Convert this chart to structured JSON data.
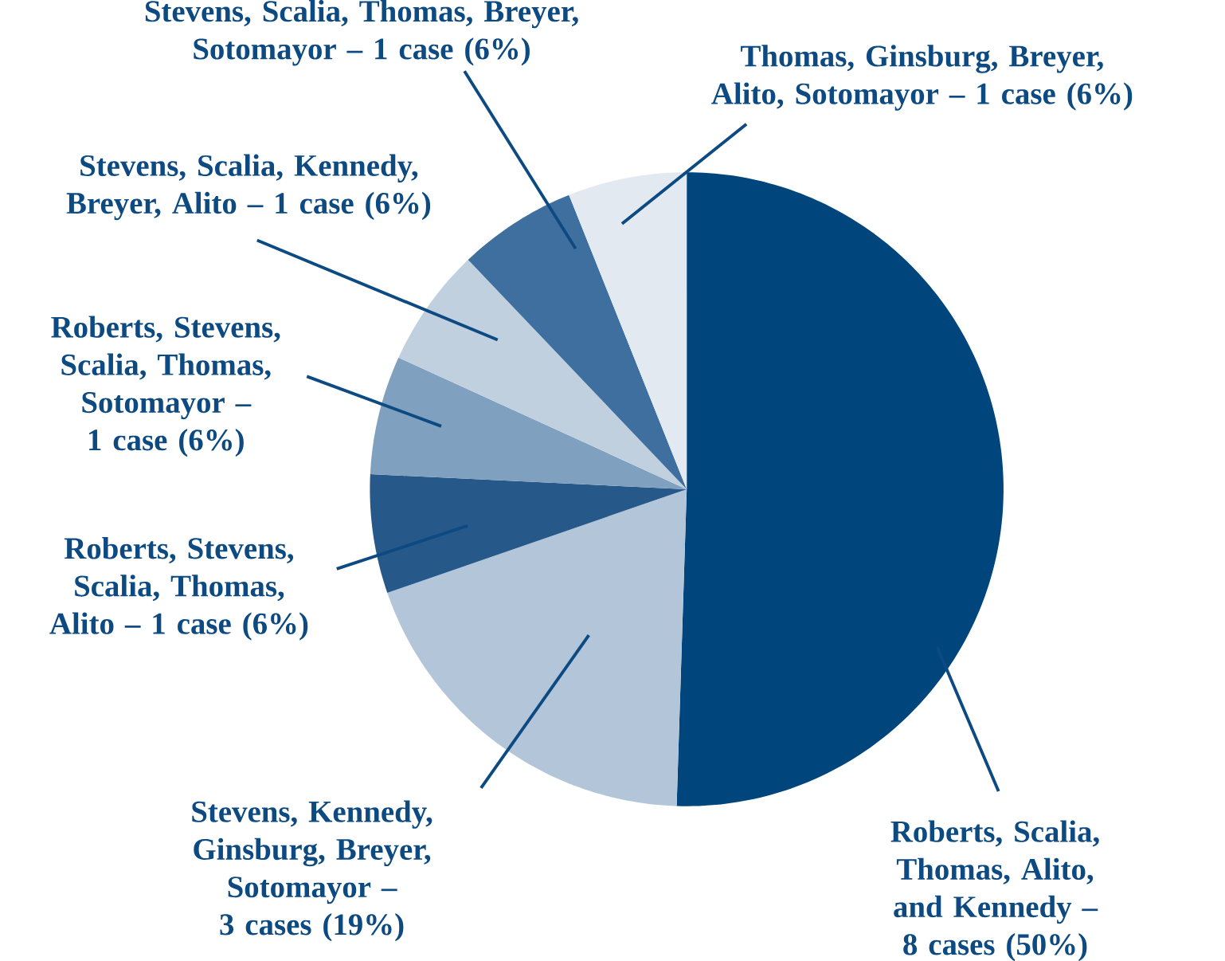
{
  "chart_data": {
    "type": "pie",
    "categories": [
      "Roberts, Scalia, Thomas, Alito, and Kennedy – 8 cases (50%)",
      "Stevens, Kennedy, Ginsburg, Breyer, Sotomayor – 3 cases (19%)",
      "Roberts, Stevens, Scalia, Thomas, Alito – 1 case (6%)",
      "Roberts, Stevens, Scalia, Thomas, Sotomayor – 1 case (6%)",
      "Stevens, Scalia, Kennedy, Breyer, Alito – 1 case (6%)",
      "Stevens, Scalia, Thomas, Breyer, Sotomayor – 1 case (6%)",
      "Thomas, Ginsburg, Breyer, Alito, Sotomayor – 1 case (6%)"
    ],
    "values": [
      50,
      19,
      6,
      6,
      6,
      6,
      6
    ],
    "colors": [
      "#00457c",
      "#b3c6d9",
      "#26598a",
      "#7fa0bf",
      "#c1d0df",
      "#3f6f9e",
      "#e3e9f1"
    ]
  }
}
